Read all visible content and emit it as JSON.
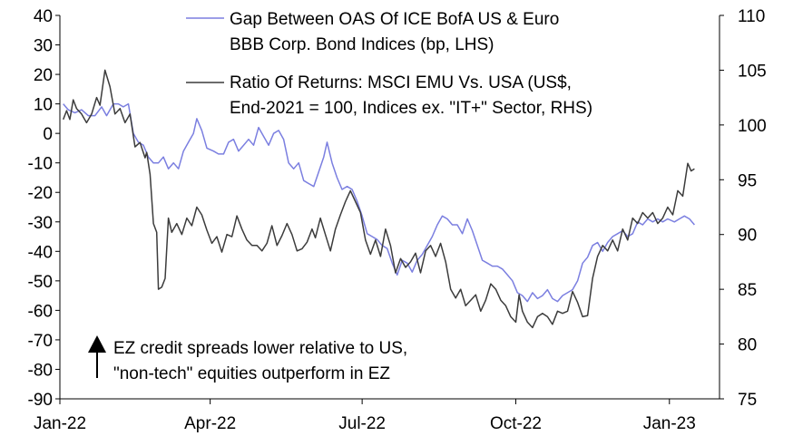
{
  "chart_data": {
    "type": "line",
    "title": "",
    "x": {
      "tick_labels": [
        "Jan-22",
        "Apr-22",
        "Jul-22",
        "Oct-22",
        "Jan-23"
      ],
      "tick_dates": [
        "2022-01-01",
        "2022-04-01",
        "2022-07-01",
        "2022-10-01",
        "2023-01-01"
      ],
      "range": [
        "2022-01-01",
        "2023-01-31"
      ]
    },
    "left_axis": {
      "ylim": [
        -90,
        40
      ],
      "ticks": [
        40,
        30,
        20,
        10,
        0,
        -10,
        -20,
        -30,
        -40,
        -50,
        -60,
        -70,
        -80,
        -90
      ],
      "tick_labels": [
        "40",
        "30",
        "20",
        "10",
        "0",
        "-10",
        "-20",
        "-30",
        "-40",
        "-50",
        "-60",
        "-70",
        "-80",
        "-90"
      ]
    },
    "right_axis": {
      "ylim": [
        75,
        110
      ],
      "ticks": [
        110,
        105,
        100,
        95,
        90,
        85,
        80,
        75
      ],
      "tick_labels": [
        "110",
        "105",
        "100",
        "95",
        "90",
        "85",
        "80",
        "75"
      ]
    },
    "series": [
      {
        "name": "Gap Between OAS Of ICE BofA US & Euro BBB Corp. Bond Indices (bp, LHS)",
        "legend_lines": [
          "Gap Between OAS Of ICE BofA US & Euro",
          "BBB Corp. Bond Indices (bp, LHS)"
        ],
        "axis": "left",
        "color": "#7b7fe0",
        "points": [
          [
            "2022-01-03",
            10
          ],
          [
            "2022-01-06",
            8
          ],
          [
            "2022-01-10",
            7
          ],
          [
            "2022-01-14",
            8
          ],
          [
            "2022-01-18",
            6
          ],
          [
            "2022-01-22",
            6
          ],
          [
            "2022-01-26",
            9
          ],
          [
            "2022-01-29",
            6
          ],
          [
            "2022-02-02",
            10
          ],
          [
            "2022-02-05",
            10
          ],
          [
            "2022-02-08",
            9
          ],
          [
            "2022-02-11",
            10
          ],
          [
            "2022-02-14",
            0
          ],
          [
            "2022-02-17",
            -3
          ],
          [
            "2022-02-20",
            -4
          ],
          [
            "2022-02-23",
            -8
          ],
          [
            "2022-02-26",
            -10
          ],
          [
            "2022-03-01",
            -10
          ],
          [
            "2022-03-04",
            -8
          ],
          [
            "2022-03-07",
            -12
          ],
          [
            "2022-03-10",
            -10
          ],
          [
            "2022-03-13",
            -12
          ],
          [
            "2022-03-16",
            -6
          ],
          [
            "2022-03-19",
            -3
          ],
          [
            "2022-03-22",
            0
          ],
          [
            "2022-03-24",
            5
          ],
          [
            "2022-03-27",
            1
          ],
          [
            "2022-03-30",
            -5
          ],
          [
            "2022-04-03",
            -6
          ],
          [
            "2022-04-06",
            -7
          ],
          [
            "2022-04-09",
            -7
          ],
          [
            "2022-04-12",
            -3
          ],
          [
            "2022-04-15",
            -2
          ],
          [
            "2022-04-18",
            -6
          ],
          [
            "2022-04-21",
            -4
          ],
          [
            "2022-04-24",
            -2
          ],
          [
            "2022-04-27",
            -4
          ],
          [
            "2022-04-30",
            2
          ],
          [
            "2022-05-03",
            -1
          ],
          [
            "2022-05-06",
            -4
          ],
          [
            "2022-05-09",
            0
          ],
          [
            "2022-05-12",
            1
          ],
          [
            "2022-05-15",
            -2
          ],
          [
            "2022-05-18",
            -10
          ],
          [
            "2022-05-21",
            -12
          ],
          [
            "2022-05-24",
            -10
          ],
          [
            "2022-05-27",
            -16
          ],
          [
            "2022-05-30",
            -17
          ],
          [
            "2022-06-02",
            -18
          ],
          [
            "2022-06-05",
            -13
          ],
          [
            "2022-06-08",
            -8
          ],
          [
            "2022-06-10",
            -3
          ],
          [
            "2022-06-13",
            -10
          ],
          [
            "2022-06-16",
            -15
          ],
          [
            "2022-06-19",
            -19
          ],
          [
            "2022-06-22",
            -18
          ],
          [
            "2022-06-25",
            -19
          ],
          [
            "2022-06-28",
            -23
          ],
          [
            "2022-07-01",
            -28
          ],
          [
            "2022-07-04",
            -34
          ],
          [
            "2022-07-07",
            -35
          ],
          [
            "2022-07-10",
            -36
          ],
          [
            "2022-07-13",
            -38
          ],
          [
            "2022-07-16",
            -39
          ],
          [
            "2022-07-19",
            -44
          ],
          [
            "2022-07-22",
            -48
          ],
          [
            "2022-07-25",
            -43
          ],
          [
            "2022-07-28",
            -44
          ],
          [
            "2022-07-31",
            -47
          ],
          [
            "2022-08-03",
            -43
          ],
          [
            "2022-08-06",
            -41
          ],
          [
            "2022-08-09",
            -38
          ],
          [
            "2022-08-12",
            -35
          ],
          [
            "2022-08-15",
            -31
          ],
          [
            "2022-08-18",
            -28
          ],
          [
            "2022-08-21",
            -29
          ],
          [
            "2022-08-24",
            -31
          ],
          [
            "2022-08-27",
            -31
          ],
          [
            "2022-08-30",
            -34
          ],
          [
            "2022-09-02",
            -29
          ],
          [
            "2022-09-05",
            -33
          ],
          [
            "2022-09-08",
            -38
          ],
          [
            "2022-09-11",
            -43
          ],
          [
            "2022-09-14",
            -44
          ],
          [
            "2022-09-17",
            -45
          ],
          [
            "2022-09-20",
            -45
          ],
          [
            "2022-09-23",
            -46
          ],
          [
            "2022-09-26",
            -48
          ],
          [
            "2022-09-29",
            -50
          ],
          [
            "2022-10-02",
            -54
          ],
          [
            "2022-10-05",
            -55
          ],
          [
            "2022-10-08",
            -57
          ],
          [
            "2022-10-11",
            -54
          ],
          [
            "2022-10-14",
            -56
          ],
          [
            "2022-10-17",
            -55
          ],
          [
            "2022-10-20",
            -53
          ],
          [
            "2022-10-23",
            -56
          ],
          [
            "2022-10-26",
            -57
          ],
          [
            "2022-10-29",
            -55
          ],
          [
            "2022-11-01",
            -54
          ],
          [
            "2022-11-04",
            -53
          ],
          [
            "2022-11-07",
            -50
          ],
          [
            "2022-11-10",
            -44
          ],
          [
            "2022-11-13",
            -42
          ],
          [
            "2022-11-16",
            -38
          ],
          [
            "2022-11-19",
            -37
          ],
          [
            "2022-11-22",
            -40
          ],
          [
            "2022-11-25",
            -37
          ],
          [
            "2022-11-28",
            -35
          ],
          [
            "2022-12-01",
            -34
          ],
          [
            "2022-12-04",
            -33
          ],
          [
            "2022-12-07",
            -35
          ],
          [
            "2022-12-10",
            -34
          ],
          [
            "2022-12-13",
            -30
          ],
          [
            "2022-12-16",
            -31
          ],
          [
            "2022-12-19",
            -29
          ],
          [
            "2022-12-22",
            -30
          ],
          [
            "2022-12-25",
            -29
          ],
          [
            "2022-12-28",
            -30
          ],
          [
            "2022-12-31",
            -29
          ],
          [
            "2023-01-04",
            -30
          ],
          [
            "2023-01-07",
            -29
          ],
          [
            "2023-01-10",
            -28
          ],
          [
            "2023-01-13",
            -29
          ],
          [
            "2023-01-16",
            -31
          ]
        ]
      },
      {
        "name": "Ratio Of Returns: MSCI EMU Vs. USA (US$, End-2021 = 100, Indices ex. \"IT+\" Sector, RHS)",
        "legend_lines": [
          "Ratio Of Returns: MSCI EMU Vs. USA (US$,",
          "End-2021 = 100, Indices ex. \"IT+\" Sector, RHS)"
        ],
        "axis": "right",
        "color": "#3c3c3c",
        "points": [
          [
            "2022-01-03",
            100.5
          ],
          [
            "2022-01-05",
            101.3
          ],
          [
            "2022-01-07",
            100.5
          ],
          [
            "2022-01-09",
            102.3
          ],
          [
            "2022-01-11",
            101.5
          ],
          [
            "2022-01-14",
            101.0
          ],
          [
            "2022-01-17",
            100.2
          ],
          [
            "2022-01-20",
            101.0
          ],
          [
            "2022-01-23",
            102.5
          ],
          [
            "2022-01-25",
            101.8
          ],
          [
            "2022-01-28",
            105.0
          ],
          [
            "2022-01-31",
            103.5
          ],
          [
            "2022-02-03",
            101.0
          ],
          [
            "2022-02-06",
            101.5
          ],
          [
            "2022-02-09",
            100.2
          ],
          [
            "2022-02-12",
            101.0
          ],
          [
            "2022-02-15",
            98.0
          ],
          [
            "2022-02-18",
            98.4
          ],
          [
            "2022-02-21",
            97.0
          ],
          [
            "2022-02-22",
            97.5
          ],
          [
            "2022-02-24",
            95.5
          ],
          [
            "2022-02-26",
            91.0
          ],
          [
            "2022-02-28",
            90.2
          ],
          [
            "2022-03-01",
            85.0
          ],
          [
            "2022-03-03",
            85.2
          ],
          [
            "2022-03-05",
            86.0
          ],
          [
            "2022-03-07",
            91.5
          ],
          [
            "2022-03-09",
            90.2
          ],
          [
            "2022-03-12",
            91.0
          ],
          [
            "2022-03-15",
            90.0
          ],
          [
            "2022-03-18",
            91.5
          ],
          [
            "2022-03-21",
            90.8
          ],
          [
            "2022-03-24",
            92.5
          ],
          [
            "2022-03-27",
            91.8
          ],
          [
            "2022-03-30",
            90.4
          ],
          [
            "2022-04-02",
            89.2
          ],
          [
            "2022-04-05",
            89.8
          ],
          [
            "2022-04-08",
            88.4
          ],
          [
            "2022-04-11",
            90.0
          ],
          [
            "2022-04-14",
            89.8
          ],
          [
            "2022-04-17",
            91.7
          ],
          [
            "2022-04-20",
            90.5
          ],
          [
            "2022-04-23",
            89.5
          ],
          [
            "2022-04-26",
            89.0
          ],
          [
            "2022-04-29",
            89.0
          ],
          [
            "2022-05-02",
            88.5
          ],
          [
            "2022-05-05",
            89.2
          ],
          [
            "2022-05-08",
            90.8
          ],
          [
            "2022-05-11",
            89.0
          ],
          [
            "2022-05-14",
            89.9
          ],
          [
            "2022-05-17",
            91.0
          ],
          [
            "2022-05-20",
            90.0
          ],
          [
            "2022-05-23",
            88.5
          ],
          [
            "2022-05-26",
            88.7
          ],
          [
            "2022-05-29",
            89.3
          ],
          [
            "2022-06-01",
            90.5
          ],
          [
            "2022-06-03",
            89.7
          ],
          [
            "2022-06-06",
            91.5
          ],
          [
            "2022-06-09",
            90.0
          ],
          [
            "2022-06-12",
            88.5
          ],
          [
            "2022-06-15",
            90.5
          ],
          [
            "2022-06-18",
            91.8
          ],
          [
            "2022-06-21",
            93.0
          ],
          [
            "2022-06-24",
            94.0
          ],
          [
            "2022-06-27",
            93.0
          ],
          [
            "2022-06-30",
            92.0
          ],
          [
            "2022-07-03",
            89.5
          ],
          [
            "2022-07-06",
            88.2
          ],
          [
            "2022-07-09",
            89.5
          ],
          [
            "2022-07-12",
            88.0
          ],
          [
            "2022-07-15",
            90.5
          ],
          [
            "2022-07-18",
            89.0
          ],
          [
            "2022-07-21",
            86.5
          ],
          [
            "2022-07-24",
            87.8
          ],
          [
            "2022-07-27",
            87.0
          ],
          [
            "2022-07-30",
            87.5
          ],
          [
            "2022-08-02",
            88.3
          ],
          [
            "2022-08-05",
            86.5
          ],
          [
            "2022-08-08",
            88.5
          ],
          [
            "2022-08-11",
            89.0
          ],
          [
            "2022-08-14",
            88.0
          ],
          [
            "2022-08-17",
            89.2
          ],
          [
            "2022-08-20",
            87.5
          ],
          [
            "2022-08-23",
            85.0
          ],
          [
            "2022-08-26",
            84.2
          ],
          [
            "2022-08-29",
            85.0
          ],
          [
            "2022-09-01",
            83.5
          ],
          [
            "2022-09-04",
            84.0
          ],
          [
            "2022-09-07",
            84.5
          ],
          [
            "2022-09-10",
            83.0
          ],
          [
            "2022-09-13",
            84.0
          ],
          [
            "2022-09-16",
            85.5
          ],
          [
            "2022-09-19",
            85.0
          ],
          [
            "2022-09-22",
            84.0
          ],
          [
            "2022-09-25",
            83.5
          ],
          [
            "2022-09-28",
            82.5
          ],
          [
            "2022-10-01",
            82.0
          ],
          [
            "2022-10-03",
            84.5
          ],
          [
            "2022-10-05",
            83.0
          ],
          [
            "2022-10-08",
            82.0
          ],
          [
            "2022-10-11",
            81.5
          ],
          [
            "2022-10-14",
            82.5
          ],
          [
            "2022-10-17",
            82.8
          ],
          [
            "2022-10-20",
            82.5
          ],
          [
            "2022-10-23",
            81.8
          ],
          [
            "2022-10-26",
            83.0
          ],
          [
            "2022-10-29",
            82.8
          ],
          [
            "2022-11-01",
            83.0
          ],
          [
            "2022-11-04",
            84.8
          ],
          [
            "2022-11-07",
            83.8
          ],
          [
            "2022-11-10",
            82.5
          ],
          [
            "2022-11-13",
            82.6
          ],
          [
            "2022-11-16",
            86.0
          ],
          [
            "2022-11-19",
            88.0
          ],
          [
            "2022-11-22",
            89.0
          ],
          [
            "2022-11-25",
            88.5
          ],
          [
            "2022-11-28",
            89.5
          ],
          [
            "2022-12-01",
            88.5
          ],
          [
            "2022-12-04",
            90.5
          ],
          [
            "2022-12-07",
            89.5
          ],
          [
            "2022-12-10",
            91.5
          ],
          [
            "2022-12-13",
            91.0
          ],
          [
            "2022-12-16",
            92.0
          ],
          [
            "2022-12-19",
            91.5
          ],
          [
            "2022-12-22",
            92.0
          ],
          [
            "2022-12-25",
            91.0
          ],
          [
            "2022-12-28",
            91.5
          ],
          [
            "2022-12-31",
            92.5
          ],
          [
            "2023-01-03",
            91.8
          ],
          [
            "2023-01-06",
            94.0
          ],
          [
            "2023-01-09",
            93.5
          ],
          [
            "2023-01-12",
            96.5
          ],
          [
            "2023-01-14",
            95.8
          ],
          [
            "2023-01-16",
            96.0
          ]
        ]
      }
    ],
    "annotation": {
      "lines": [
        "EZ credit spreads lower relative to US,",
        "\"non-tech\" equities outperform in EZ"
      ],
      "arrow": "up"
    }
  }
}
